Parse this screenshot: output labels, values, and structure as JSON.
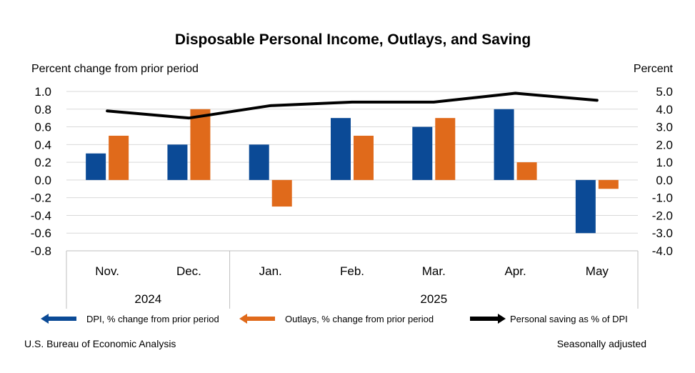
{
  "chart_data": {
    "type": "bar",
    "title": "Disposable Personal Income, Outlays, and Saving",
    "left_axis_label": "Percent change from prior period",
    "right_axis_label": "Percent",
    "categories": [
      "Nov.",
      "Dec.",
      "Jan.",
      "Feb.",
      "Mar.",
      "Apr.",
      "May"
    ],
    "year_groups": [
      {
        "label": "2024",
        "categories": [
          "Nov.",
          "Dec."
        ]
      },
      {
        "label": "2025",
        "categories": [
          "Jan.",
          "Feb.",
          "Mar.",
          "Apr.",
          "May"
        ]
      }
    ],
    "ylim_left": [
      -0.8,
      1.0
    ],
    "ylim_right": [
      -4.0,
      5.0
    ],
    "left_ticks": [
      "1.0",
      "0.8",
      "0.6",
      "0.4",
      "0.2",
      "0.0",
      "-0.2",
      "-0.4",
      "-0.6",
      "-0.8"
    ],
    "right_ticks": [
      "5.0",
      "4.0",
      "3.0",
      "2.0",
      "1.0",
      "0.0",
      "-1.0",
      "-2.0",
      "-3.0",
      "-4.0"
    ],
    "series": [
      {
        "name": "DPI, % change from prior period",
        "type": "bar",
        "axis": "left",
        "color": "#0b4a96",
        "values": [
          0.3,
          0.4,
          0.4,
          0.7,
          0.6,
          0.8,
          -0.6
        ]
      },
      {
        "name": "Outlays, % change from prior period",
        "type": "bar",
        "axis": "left",
        "color": "#e06a1b",
        "values": [
          0.5,
          0.8,
          -0.3,
          0.5,
          0.7,
          0.2,
          -0.1
        ]
      },
      {
        "name": "Personal saving as % of DPI",
        "type": "line",
        "axis": "right",
        "color": "#000000",
        "values": [
          3.9,
          3.5,
          4.2,
          4.4,
          4.4,
          4.9,
          4.5
        ]
      }
    ],
    "grid": true,
    "legend_position": "bottom"
  },
  "footer": {
    "source": "U.S. Bureau of Economic Analysis",
    "note": "Seasonally adjusted"
  }
}
